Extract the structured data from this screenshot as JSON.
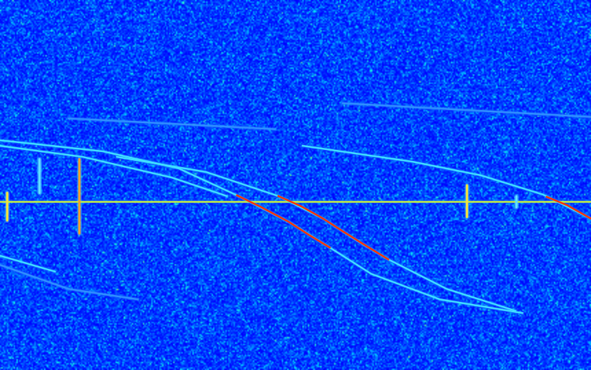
{
  "chart_data": {
    "type": "spectrogram",
    "xlim": [
      0,
      100
    ],
    "ylim": [
      100,
      0
    ],
    "tick_labels": false,
    "grid": false,
    "series": [
      {
        "type": "trace",
        "color": "#c8f040",
        "x": [
          0,
          100
        ],
        "values": [
          54.5,
          54.5
        ]
      },
      {
        "type": "trace",
        "color": "#40e0ff",
        "x": [
          0,
          17.4,
          30.2,
          40.1,
          48.8,
          55.8,
          62.8,
          74.4,
          88.4
        ],
        "values": [
          37.9,
          40.9,
          45.5,
          52.8,
          59.9,
          66.9,
          74.0,
          80.9,
          84.6
        ]
      },
      {
        "type": "trace",
        "color": "#ff3000",
        "x": [
          40.1,
          44.2,
          48.8,
          52.3,
          55.8
        ],
        "values": [
          52.8,
          56.0,
          59.9,
          63.5,
          66.9
        ]
      },
      {
        "type": "trace",
        "color": "#40e0ff",
        "x": [
          19.8,
          34.9,
          47.1,
          54.7,
          60.5,
          65.7,
          75.6,
          87.2
        ],
        "values": [
          42.4,
          46.5,
          53.0,
          59.1,
          65.1,
          70.1,
          78.1,
          84.0
        ]
      },
      {
        "type": "trace",
        "color": "#ff3000",
        "x": [
          47.1,
          51,
          54.7,
          58,
          61.5,
          65.7
        ],
        "values": [
          53.0,
          55.8,
          59.1,
          62.5,
          66,
          70.1
        ]
      },
      {
        "type": "trace",
        "color": "#40e0ff",
        "x": [
          51.2,
          69.8,
          81.4,
          91.9,
          100
        ],
        "values": [
          39.4,
          43.7,
          47.4,
          52.6,
          59.1
        ]
      },
      {
        "type": "trace",
        "color": "#ff3000",
        "x": [
          92.5,
          96,
          100
        ],
        "values": [
          53.2,
          55.5,
          59.1
        ]
      },
      {
        "type": "trace",
        "color": "#40e0ff",
        "x": [
          0,
          14,
          29.1,
          38.4
        ],
        "values": [
          39.4,
          42.4,
          48,
          53
        ]
      },
      {
        "type": "trace",
        "color": "#40e0ff",
        "x": [
          0,
          9.3
        ],
        "values": [
          69.1,
          73.4
        ]
      },
      {
        "type": "trace",
        "color": "#3090ff",
        "x": [
          0,
          11.6,
          23.3
        ],
        "values": [
          71.6,
          78.1,
          80.9
        ]
      },
      {
        "type": "trace",
        "color": "#3090ff",
        "x": [
          11.6,
          46.5
        ],
        "values": [
          32,
          34.9
        ]
      },
      {
        "type": "trace",
        "color": "#3090ff",
        "x": [
          58,
          100
        ],
        "values": [
          27.9,
          31.6
        ]
      },
      {
        "type": "spike",
        "color": "#f0e040",
        "x": [
          1.2,
          1.2
        ],
        "values": [
          52,
          59.5
        ]
      },
      {
        "type": "spike",
        "color": "#60e0ff",
        "x": [
          6.6,
          6.6
        ],
        "values": [
          43,
          52
        ]
      },
      {
        "type": "spike",
        "color": "#f0a030",
        "x": [
          13.4,
          13.4
        ],
        "values": [
          43,
          63
        ]
      },
      {
        "type": "spike",
        "color": "#f0e040",
        "x": [
          79,
          79
        ],
        "values": [
          50,
          58.5
        ]
      },
      {
        "type": "spike",
        "color": "#60e0ff",
        "x": [
          87.3,
          87.3
        ],
        "values": [
          53,
          56
        ]
      }
    ]
  }
}
